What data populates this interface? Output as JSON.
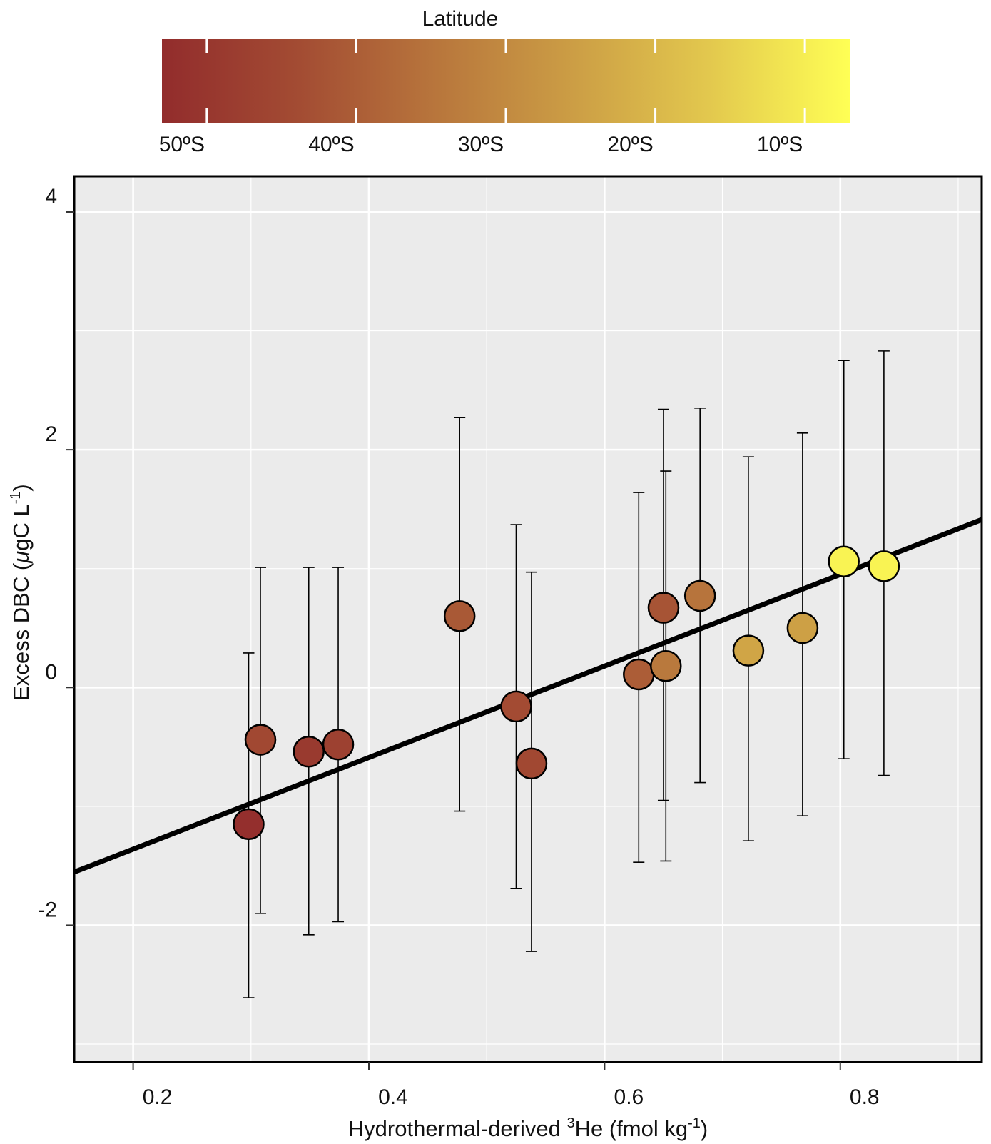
{
  "chart_data": {
    "type": "scatter",
    "title": "",
    "xlabel": {
      "prefix": "Hydrothermal-derived ",
      "superscript": "3",
      "main": "He (fmol kg",
      "unit_superscript": "-1",
      "suffix": ")"
    },
    "ylabel": {
      "main": "Excess DBC (",
      "mu": "μ",
      "unit": "gC L",
      "unit_superscript": "-1",
      "suffix": ")"
    },
    "xlim": [
      0.15,
      0.92
    ],
    "ylim": [
      -3.15,
      4.3
    ],
    "x_ticks": [
      0.2,
      0.4,
      0.6,
      0.8
    ],
    "x_tick_labels": [
      "0.2",
      "0.4",
      "0.6",
      "0.8"
    ],
    "x_minor_grid": [
      0.3,
      0.5,
      0.7,
      0.9
    ],
    "y_ticks": [
      -2,
      0,
      2,
      4
    ],
    "y_tick_labels": [
      "-2",
      "0",
      "2",
      "4"
    ],
    "y_minor_grid": [
      -3,
      -1,
      1,
      3
    ],
    "grid": true,
    "fit_line": {
      "slope": 3.85,
      "intercept": -2.13
    },
    "colorbar": {
      "title": "Latitude",
      "position": "top",
      "range": [
        -53,
        -7
      ],
      "colors": [
        "#922c2c",
        "#a34c33",
        "#b8763c",
        "#cc9e45",
        "#e3c94e",
        "#ffff55"
      ],
      "ticks": [
        -50,
        -40,
        -30,
        -20,
        -10
      ],
      "tick_labels": [
        "50ºS",
        "40ºS",
        "30ºS",
        "20ºS",
        "10ºS"
      ]
    },
    "points": [
      {
        "x": 0.298,
        "y": -1.15,
        "err_low": -2.61,
        "err_high": 0.29,
        "lat": -52
      },
      {
        "x": 0.308,
        "y": -0.44,
        "err_low": -1.9,
        "err_high": 1.01,
        "lat": -45
      },
      {
        "x": 0.349,
        "y": -0.54,
        "err_low": -2.08,
        "err_high": 1.01,
        "lat": -49
      },
      {
        "x": 0.374,
        "y": -0.48,
        "err_low": -1.97,
        "err_high": 1.01,
        "lat": -47
      },
      {
        "x": 0.477,
        "y": 0.6,
        "err_low": -1.04,
        "err_high": 2.27,
        "lat": -41
      },
      {
        "x": 0.525,
        "y": -0.16,
        "err_low": -1.69,
        "err_high": 1.37,
        "lat": -44
      },
      {
        "x": 0.538,
        "y": -0.64,
        "err_low": -2.22,
        "err_high": 0.97,
        "lat": -45
      },
      {
        "x": 0.629,
        "y": 0.11,
        "err_low": -1.47,
        "err_high": 1.64,
        "lat": -40
      },
      {
        "x": 0.65,
        "y": 0.67,
        "err_low": -0.95,
        "err_high": 2.34,
        "lat": -42
      },
      {
        "x": 0.652,
        "y": 0.18,
        "err_low": -1.46,
        "err_high": 1.82,
        "lat": -34
      },
      {
        "x": 0.681,
        "y": 0.77,
        "err_low": -0.8,
        "err_high": 2.35,
        "lat": -35
      },
      {
        "x": 0.722,
        "y": 0.31,
        "err_low": -1.29,
        "err_high": 1.94,
        "lat": -24
      },
      {
        "x": 0.768,
        "y": 0.5,
        "err_low": -1.08,
        "err_high": 2.14,
        "lat": -25
      },
      {
        "x": 0.803,
        "y": 1.06,
        "err_low": -0.6,
        "err_high": 2.75,
        "lat": -9
      },
      {
        "x": 0.837,
        "y": 1.02,
        "err_low": -0.74,
        "err_high": 2.83,
        "lat": -9
      }
    ]
  }
}
